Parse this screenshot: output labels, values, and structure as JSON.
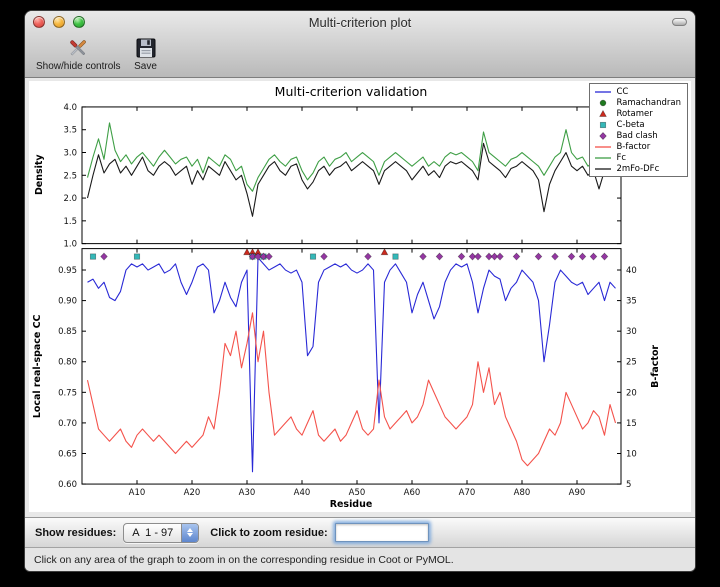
{
  "window": {
    "title": "Multi-criterion plot"
  },
  "toolbar": {
    "buttons": [
      {
        "label": "Show/hide controls",
        "icon": "tools-icon"
      },
      {
        "label": "Save",
        "icon": "save-icon"
      }
    ]
  },
  "legend": {
    "items": [
      {
        "label": "CC",
        "marker": "line",
        "color": "#2929d6"
      },
      {
        "label": "Ramachandran",
        "marker": "circle",
        "color": "#1f7a1f"
      },
      {
        "label": "Rotamer",
        "marker": "triangle",
        "color": "#cc2a1e"
      },
      {
        "label": "C-beta",
        "marker": "square",
        "color": "#35b8b8"
      },
      {
        "label": "Bad clash",
        "marker": "diamond",
        "color": "#9437a2"
      },
      {
        "label": "B-factor",
        "marker": "line",
        "color": "#f4534c"
      },
      {
        "label": "Fc",
        "marker": "line",
        "color": "#3f9f46"
      },
      {
        "label": "2mFo-DFc",
        "marker": "line",
        "color": "#1a1a1a"
      }
    ]
  },
  "chart_data": [
    {
      "type": "line",
      "title": "Multi-criterion validation",
      "ylabel": "Density",
      "ylim": [
        1.0,
        4.0
      ],
      "yticks": [
        1.0,
        1.5,
        2.0,
        2.5,
        3.0,
        3.5,
        4.0
      ],
      "xlim": [
        0,
        98
      ],
      "x_start": 1,
      "series": [
        {
          "name": "Fc",
          "color": "#3f9f46",
          "values": [
            2.45,
            2.9,
            3.3,
            2.85,
            3.65,
            3.05,
            2.8,
            2.95,
            2.75,
            2.9,
            3.0,
            2.85,
            2.7,
            2.9,
            3.05,
            2.9,
            2.75,
            2.85,
            2.9,
            2.7,
            2.85,
            2.55,
            2.9,
            2.8,
            2.7,
            2.95,
            2.85,
            2.6,
            2.7,
            2.3,
            2.15,
            2.45,
            2.65,
            2.85,
            2.95,
            2.8,
            2.7,
            2.85,
            2.9,
            2.6,
            2.4,
            2.55,
            2.8,
            2.9,
            2.7,
            2.85,
            2.9,
            3.0,
            2.8,
            2.9,
            3.0,
            2.9,
            2.8,
            2.5,
            2.8,
            2.9,
            3.0,
            2.9,
            2.8,
            2.7,
            2.8,
            2.9,
            2.7,
            2.8,
            2.7,
            2.9,
            3.0,
            2.95,
            3.0,
            2.9,
            2.8,
            2.6,
            3.45,
            3.0,
            2.9,
            2.8,
            2.7,
            2.85,
            2.9,
            3.0,
            2.9,
            2.8,
            2.7,
            2.5,
            2.7,
            2.9,
            3.0,
            3.5,
            3.0,
            2.85,
            2.9,
            2.7,
            2.8,
            2.5,
            2.9,
            3.35,
            3.0
          ]
        },
        {
          "name": "2mFo-DFc",
          "color": "#1a1a1a",
          "values": [
            2.0,
            2.5,
            2.95,
            2.55,
            2.75,
            2.85,
            2.55,
            2.7,
            2.5,
            2.7,
            2.9,
            2.6,
            2.5,
            2.7,
            2.8,
            2.7,
            2.5,
            2.6,
            2.7,
            2.3,
            2.6,
            2.4,
            2.7,
            2.6,
            2.5,
            2.8,
            2.6,
            2.4,
            2.5,
            2.1,
            1.6,
            2.3,
            2.5,
            2.7,
            2.8,
            2.6,
            2.5,
            2.7,
            2.75,
            2.4,
            2.2,
            2.35,
            2.6,
            2.7,
            2.5,
            2.65,
            2.7,
            2.8,
            2.6,
            2.7,
            2.8,
            2.7,
            2.6,
            2.3,
            2.6,
            2.7,
            2.8,
            2.7,
            2.6,
            2.4,
            2.55,
            2.7,
            2.5,
            2.6,
            2.45,
            2.7,
            2.8,
            2.75,
            2.8,
            2.7,
            2.6,
            2.4,
            3.2,
            2.8,
            2.7,
            2.6,
            2.45,
            2.65,
            2.7,
            2.8,
            2.7,
            2.6,
            2.4,
            1.7,
            2.3,
            2.6,
            2.8,
            3.0,
            2.7,
            2.6,
            2.7,
            2.5,
            2.6,
            2.2,
            2.6,
            3.0,
            2.7
          ]
        }
      ]
    },
    {
      "type": "line",
      "xlabel": "Residue",
      "ylabel_left": "Local real-space CC",
      "ylabel_right": "B-factor",
      "ylim_left": [
        0.6,
        0.985
      ],
      "yticks_left": [
        0.6,
        0.65,
        0.7,
        0.75,
        0.8,
        0.85,
        0.9,
        0.95
      ],
      "ylim_right": [
        5,
        43.5
      ],
      "yticks_right": [
        5,
        10,
        15,
        20,
        25,
        30,
        35,
        40
      ],
      "xlim": [
        0,
        98
      ],
      "x_start": 1,
      "xticks": [
        10,
        20,
        30,
        40,
        50,
        60,
        70,
        80,
        90
      ],
      "xtick_labels": [
        "A10",
        "A20",
        "A30",
        "A40",
        "A50",
        "A60",
        "A70",
        "A80",
        "A90"
      ],
      "series": [
        {
          "name": "CC",
          "axis": "left",
          "color": "#2929d6",
          "values": [
            0.93,
            0.935,
            0.92,
            0.93,
            0.905,
            0.9,
            0.915,
            0.95,
            0.96,
            0.955,
            0.96,
            0.95,
            0.955,
            0.96,
            0.945,
            0.95,
            0.96,
            0.93,
            0.91,
            0.93,
            0.955,
            0.96,
            0.95,
            0.88,
            0.9,
            0.93,
            0.905,
            0.89,
            0.93,
            0.95,
            0.62,
            0.97,
            0.96,
            0.95,
            0.955,
            0.96,
            0.95,
            0.945,
            0.95,
            0.93,
            0.81,
            0.825,
            0.93,
            0.95,
            0.955,
            0.96,
            0.955,
            0.96,
            0.95,
            0.945,
            0.95,
            0.96,
            0.95,
            0.7,
            0.93,
            0.95,
            0.96,
            0.945,
            0.93,
            0.88,
            0.91,
            0.93,
            0.9,
            0.87,
            0.89,
            0.93,
            0.95,
            0.96,
            0.955,
            0.96,
            0.93,
            0.88,
            0.92,
            0.95,
            0.94,
            0.935,
            0.9,
            0.92,
            0.93,
            0.95,
            0.94,
            0.93,
            0.9,
            0.8,
            0.86,
            0.93,
            0.95,
            0.94,
            0.93,
            0.925,
            0.93,
            0.91,
            0.92,
            0.93,
            0.9,
            0.93,
            0.92
          ]
        },
        {
          "name": "B-factor",
          "axis": "right",
          "color": "#f4534c",
          "values": [
            22,
            18,
            14,
            13,
            12,
            13,
            14,
            12,
            11,
            13,
            14,
            13,
            12,
            13,
            12,
            11,
            10,
            11,
            12,
            11,
            12,
            13,
            16,
            14,
            20,
            28,
            26,
            30,
            24,
            28,
            33,
            25,
            30,
            20,
            13,
            14,
            15,
            16,
            14,
            13,
            15,
            17,
            13,
            12,
            13,
            14,
            12,
            13,
            15,
            17,
            14,
            13,
            14,
            22,
            16,
            14,
            15,
            16,
            17,
            15,
            16,
            18,
            22,
            20,
            18,
            16,
            15,
            14,
            15,
            16,
            18,
            25,
            20,
            24,
            18,
            20,
            16,
            14,
            12,
            9,
            8,
            9,
            10,
            12,
            14,
            13,
            15,
            20,
            18,
            16,
            14,
            15,
            17,
            16,
            13,
            18,
            15
          ]
        }
      ],
      "marker_rows": [
        {
          "name": "Rotamer",
          "marker": "triangle",
          "color": "#cc2a1e",
          "y": 0.979,
          "residues": [
            30,
            31,
            32,
            55
          ]
        },
        {
          "name": "C-beta",
          "marker": "square",
          "color": "#35b8b8",
          "y": 0.972,
          "residues": [
            2,
            10,
            31,
            33,
            42,
            57
          ]
        },
        {
          "name": "Bad clash",
          "marker": "diamond",
          "color": "#9437a2",
          "y": 0.972,
          "residues": [
            4,
            31,
            32,
            33,
            34,
            44,
            52,
            62,
            65,
            69,
            71,
            72,
            74,
            75,
            76,
            79,
            83,
            86,
            89,
            91,
            93,
            95
          ]
        }
      ]
    }
  ],
  "controls": {
    "show_residues_label": "Show residues:",
    "chain_range": "A  1 - 97",
    "zoom_label": "Click to zoom residue:",
    "zoom_value": ""
  },
  "status_bar": {
    "text": "Click on any area of the graph to zoom in on the corresponding residue in Coot or PyMOL."
  }
}
